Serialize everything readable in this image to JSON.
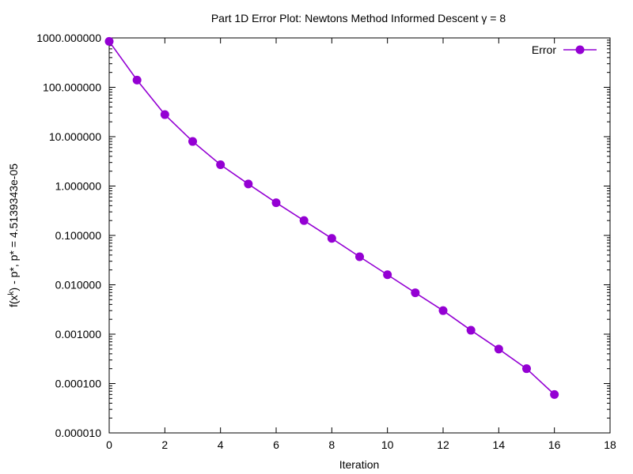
{
  "chart_data": {
    "type": "line",
    "title": "Part 1D Error Plot: Newtons Method Informed Descent γ = 8",
    "xlabel": "Iteration",
    "ylabel_parts": {
      "prefix": "f(x",
      "sup": "k",
      "suffix": ") - p*, p* = 4.5139343e-05"
    },
    "y_scale": "log",
    "xlim": [
      0,
      18
    ],
    "ylim": [
      1e-05,
      1000
    ],
    "x_ticks": [
      0,
      2,
      4,
      6,
      8,
      10,
      12,
      14,
      16,
      18
    ],
    "x_tick_labels": [
      "0",
      "2",
      "4",
      "6",
      "8",
      "10",
      "12",
      "14",
      "16",
      "18"
    ],
    "y_ticks": [
      1000,
      100,
      10,
      1,
      0.1,
      0.01,
      0.001,
      0.0001,
      1e-05
    ],
    "y_tick_labels": [
      "1000.000000",
      "100.000000",
      "10.000000",
      "1.000000",
      "0.100000",
      "0.010000",
      "0.001000",
      "0.000100",
      "0.000010"
    ],
    "grid": false,
    "legend_position": "top-right",
    "series": [
      {
        "name": "Error",
        "color": "#9400d3",
        "x": [
          0,
          1,
          2,
          3,
          4,
          5,
          6,
          7,
          8,
          9,
          10,
          11,
          12,
          13,
          14,
          15,
          16
        ],
        "y": [
          850,
          140,
          28,
          8,
          2.7,
          1.1,
          0.46,
          0.2,
          0.087,
          0.037,
          0.016,
          0.0069,
          0.003,
          0.0012,
          0.0005,
          0.0002,
          6e-05
        ]
      }
    ]
  }
}
